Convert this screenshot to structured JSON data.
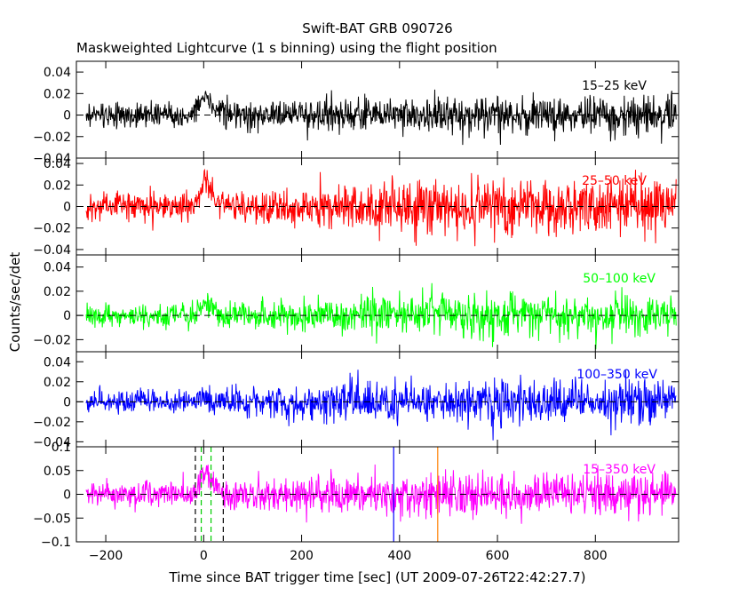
{
  "figure": {
    "title": "Swift-BAT GRB 090726",
    "subtitle": "Maskweighted Lightcurve (1 s binning) using the flight position",
    "xlabel": "Time since BAT trigger time [sec] (UT 2009-07-26T22:42:27.7)",
    "ylabel": "Counts/sec/det"
  },
  "chart_data": [
    {
      "type": "line",
      "band_label": "15–25 keV",
      "color": "#000000",
      "xlim": [
        -260,
        970
      ],
      "ylim": [
        -0.04,
        0.05
      ],
      "yticks": [
        -0.04,
        -0.02,
        0,
        0.02,
        0.04
      ],
      "ytick_labels": [
        "−0.04",
        "−0.02",
        "0",
        "0.02",
        "0.04"
      ],
      "series": [
        {
          "x_range": [
            -240,
            965
          ],
          "bin_s": 1,
          "baseline": 0,
          "noise_sd": [
            [
              -240,
              0.005
            ],
            [
              0,
              0.006
            ],
            [
              460,
              0.009
            ],
            [
              965,
              0.009
            ]
          ],
          "peak": {
            "t": 5,
            "height": 0.02
          }
        }
      ]
    },
    {
      "type": "line",
      "band_label": "25–50 keV",
      "color": "#ff0000",
      "xlim": [
        -260,
        970
      ],
      "ylim": [
        -0.045,
        0.045
      ],
      "yticks": [
        -0.04,
        -0.02,
        0,
        0.02,
        0.04
      ],
      "ytick_labels": [
        "−0.04",
        "−0.02",
        "0",
        "0.02",
        "0.04"
      ],
      "series": [
        {
          "x_range": [
            -240,
            965
          ],
          "bin_s": 1,
          "baseline": 0,
          "noise_sd": [
            [
              -240,
              0.006
            ],
            [
              0,
              0.007
            ],
            [
              460,
              0.012
            ],
            [
              965,
              0.012
            ]
          ],
          "peak": {
            "t": 5,
            "height": 0.025
          }
        }
      ]
    },
    {
      "type": "line",
      "band_label": "50–100 keV",
      "color": "#00ff00",
      "xlim": [
        -260,
        970
      ],
      "ylim": [
        -0.03,
        0.05
      ],
      "yticks": [
        -0.02,
        0,
        0.02,
        0.04
      ],
      "ytick_labels": [
        "−0.02",
        "0",
        "0.02",
        "0.04"
      ],
      "series": [
        {
          "x_range": [
            -240,
            965
          ],
          "bin_s": 1,
          "baseline": 0,
          "noise_sd": [
            [
              -240,
              0.005
            ],
            [
              0,
              0.005
            ],
            [
              460,
              0.009
            ],
            [
              965,
              0.009
            ]
          ],
          "peak": {
            "t": 5,
            "height": 0.012
          }
        }
      ]
    },
    {
      "type": "line",
      "band_label": "100–350 keV",
      "color": "#0000ff",
      "xlim": [
        -260,
        970
      ],
      "ylim": [
        -0.045,
        0.05
      ],
      "yticks": [
        -0.04,
        -0.02,
        0,
        0.02,
        0.04
      ],
      "ytick_labels": [
        "−0.04",
        "−0.02",
        "0",
        "0.02",
        "0.04"
      ],
      "series": [
        {
          "x_range": [
            -240,
            965
          ],
          "bin_s": 1,
          "baseline": 0,
          "noise_sd": [
            [
              -240,
              0.006
            ],
            [
              0,
              0.006
            ],
            [
              460,
              0.011
            ],
            [
              965,
              0.011
            ]
          ],
          "peak": {
            "t": 5,
            "height": 0.005
          }
        }
      ]
    },
    {
      "type": "line",
      "band_label": "15–350 keV",
      "color": "#ff00ff",
      "xlim": [
        -260,
        970
      ],
      "ylim": [
        -0.1,
        0.1
      ],
      "yticks": [
        -0.1,
        -0.05,
        0,
        0.05,
        0.1
      ],
      "ytick_labels": [
        "−0.1",
        "−0.05",
        "0",
        "0.05",
        "0.1"
      ],
      "xticks": [
        -200,
        0,
        200,
        400,
        600,
        800
      ],
      "xtick_labels": [
        "−200",
        "0",
        "200",
        "400",
        "600",
        "800"
      ],
      "series": [
        {
          "x_range": [
            -240,
            965
          ],
          "bin_s": 1,
          "baseline": 0,
          "noise_sd": [
            [
              -240,
              0.013
            ],
            [
              0,
              0.014
            ],
            [
              460,
              0.024
            ],
            [
              965,
              0.024
            ]
          ],
          "peak": {
            "t": 5,
            "height": 0.05
          }
        }
      ],
      "markers": [
        {
          "t": -17,
          "color": "#000000",
          "style": "dashed"
        },
        {
          "t": 40,
          "color": "#000000",
          "style": "dashed"
        },
        {
          "t": -5,
          "color": "#00cc00",
          "style": "dashed"
        },
        {
          "t": 15,
          "color": "#00cc00",
          "style": "dashed"
        },
        {
          "t": 388,
          "color": "#0000ff",
          "style": "solid"
        },
        {
          "t": 478,
          "color": "#ff8000",
          "style": "solid"
        }
      ]
    }
  ]
}
